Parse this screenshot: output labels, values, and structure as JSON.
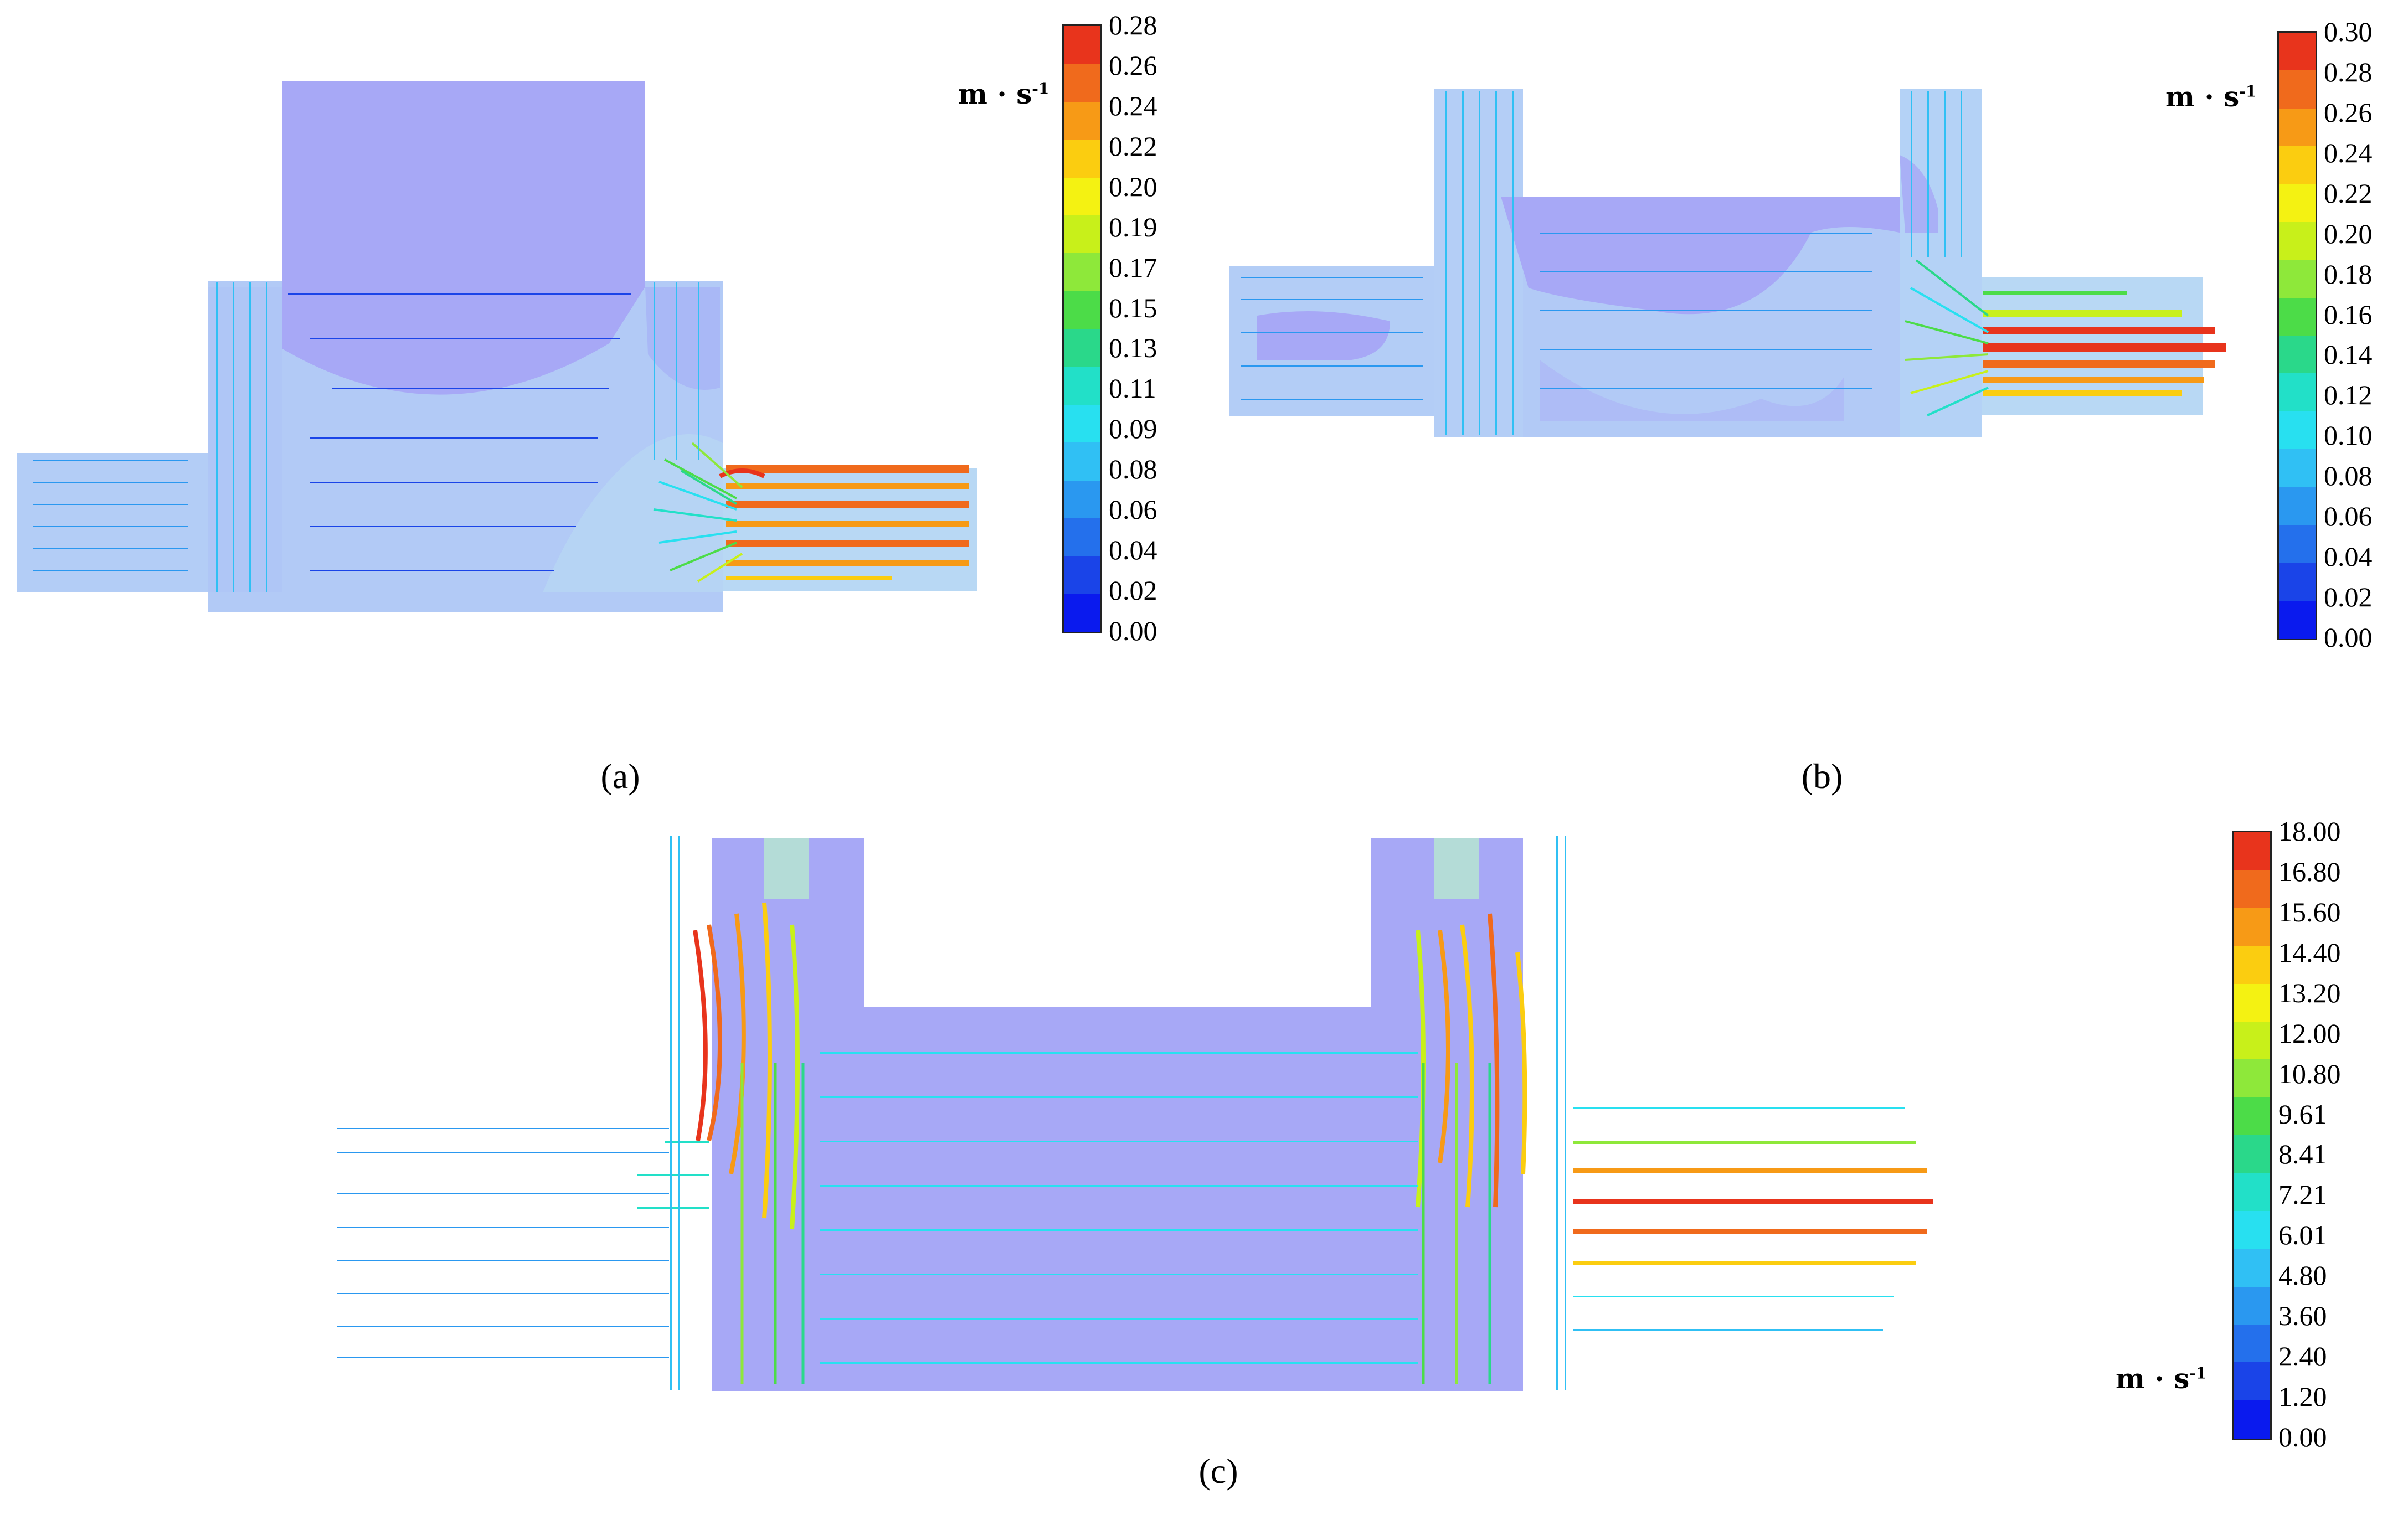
{
  "panels": [
    {
      "id": "a",
      "caption": "(a)",
      "unit_base": "m · s",
      "unit_exp": "-1",
      "colorbar": {
        "ticks": [
          "0.28",
          "0.26",
          "0.24",
          "0.22",
          "0.20",
          "0.19",
          "0.17",
          "0.15",
          "0.13",
          "0.11",
          "0.09",
          "0.08",
          "0.06",
          "0.04",
          "0.02",
          "0.00"
        ]
      }
    },
    {
      "id": "b",
      "caption": "(b)",
      "unit_base": "m · s",
      "unit_exp": "-1",
      "colorbar": {
        "ticks": [
          "0.30",
          "0.28",
          "0.26",
          "0.24",
          "0.22",
          "0.20",
          "0.18",
          "0.16",
          "0.14",
          "0.12",
          "0.10",
          "0.08",
          "0.06",
          "0.04",
          "0.02",
          "0.00"
        ]
      }
    },
    {
      "id": "c",
      "caption": "(c)",
      "unit_base": "m · s",
      "unit_exp": "-1",
      "colorbar": {
        "ticks": [
          "18.00",
          "16.80",
          "15.60",
          "14.40",
          "13.20",
          "12.00",
          "10.80",
          "9.61",
          "8.41",
          "7.21",
          "6.01",
          "4.80",
          "3.60",
          "2.40",
          "1.20",
          "0.00"
        ]
      }
    }
  ],
  "colors": {
    "scale": [
      "#e8341c",
      "#f06a1c",
      "#f79a16",
      "#fbcd10",
      "#f4f212",
      "#c8f01a",
      "#8ee83a",
      "#4cdc48",
      "#2ad88a",
      "#22e0c8",
      "#28e0f0",
      "#30c0f4",
      "#2a98f0",
      "#2470ec",
      "#1a44e8",
      "#0a1aee"
    ],
    "body_purple": "#a7a8f6",
    "body_light": "#aec8f6"
  }
}
